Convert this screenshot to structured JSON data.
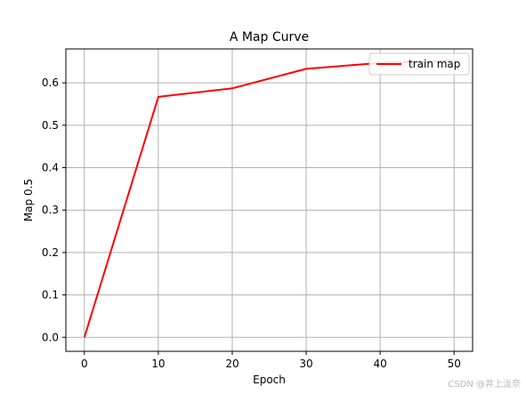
{
  "chart_data": {
    "type": "line",
    "title": "A Map Curve",
    "xlabel": "Epoch",
    "ylabel": "Map 0.5",
    "xlim": [
      -2.5,
      52.5
    ],
    "ylim": [
      -0.033,
      0.68
    ],
    "xticks": [
      0,
      10,
      20,
      30,
      40,
      50
    ],
    "yticks": [
      0.0,
      0.1,
      0.2,
      0.3,
      0.4,
      0.5,
      0.6
    ],
    "ytick_labels": [
      "0.0",
      "0.1",
      "0.2",
      "0.3",
      "0.4",
      "0.5",
      "0.6"
    ],
    "grid": true,
    "legend_position": "top-right",
    "series": [
      {
        "name": "train map",
        "color": "#ff0000",
        "x": [
          0,
          10,
          20,
          30,
          40,
          50
        ],
        "y": [
          0.0,
          0.567,
          0.587,
          0.633,
          0.647,
          0.652
        ]
      }
    ]
  },
  "watermark": "CSDN @井上泷奈"
}
